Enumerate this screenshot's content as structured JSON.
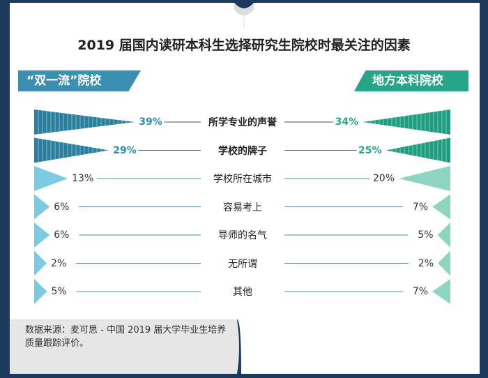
{
  "title": "2019 届国内读研本科生选择研究生院校时最关注的因素",
  "chart_data": {
    "type": "bar",
    "categories": [
      "所学专业的声誉",
      "学校的牌子",
      "学校所在城市",
      "容易考上",
      "导师的名气",
      "无所谓",
      "其他"
    ],
    "series": [
      {
        "name": "“双一流”院校",
        "values": [
          39,
          29,
          13,
          6,
          6,
          2,
          5
        ],
        "labels": [
          "39%",
          "29%",
          "13%",
          "6%",
          "6%",
          "2%",
          "5%"
        ]
      },
      {
        "name": "地方本科院校",
        "values": [
          34,
          25,
          20,
          7,
          5,
          2,
          7
        ],
        "labels": [
          "34%",
          "25%",
          "20%",
          "7%",
          "5%",
          "2%",
          "7%"
        ]
      }
    ],
    "highlight_categories": [
      "所学专业的声誉",
      "学校的牌子"
    ],
    "colors": {
      "left_strong": "#2a7f9e",
      "left_light": "#7ccbe3",
      "right_strong": "#1f9d80",
      "right_light": "#8fd4bf"
    }
  },
  "source": "数据来源：麦可思 - 中国 2019 届大学毕业生培养质量跟踪评价。"
}
